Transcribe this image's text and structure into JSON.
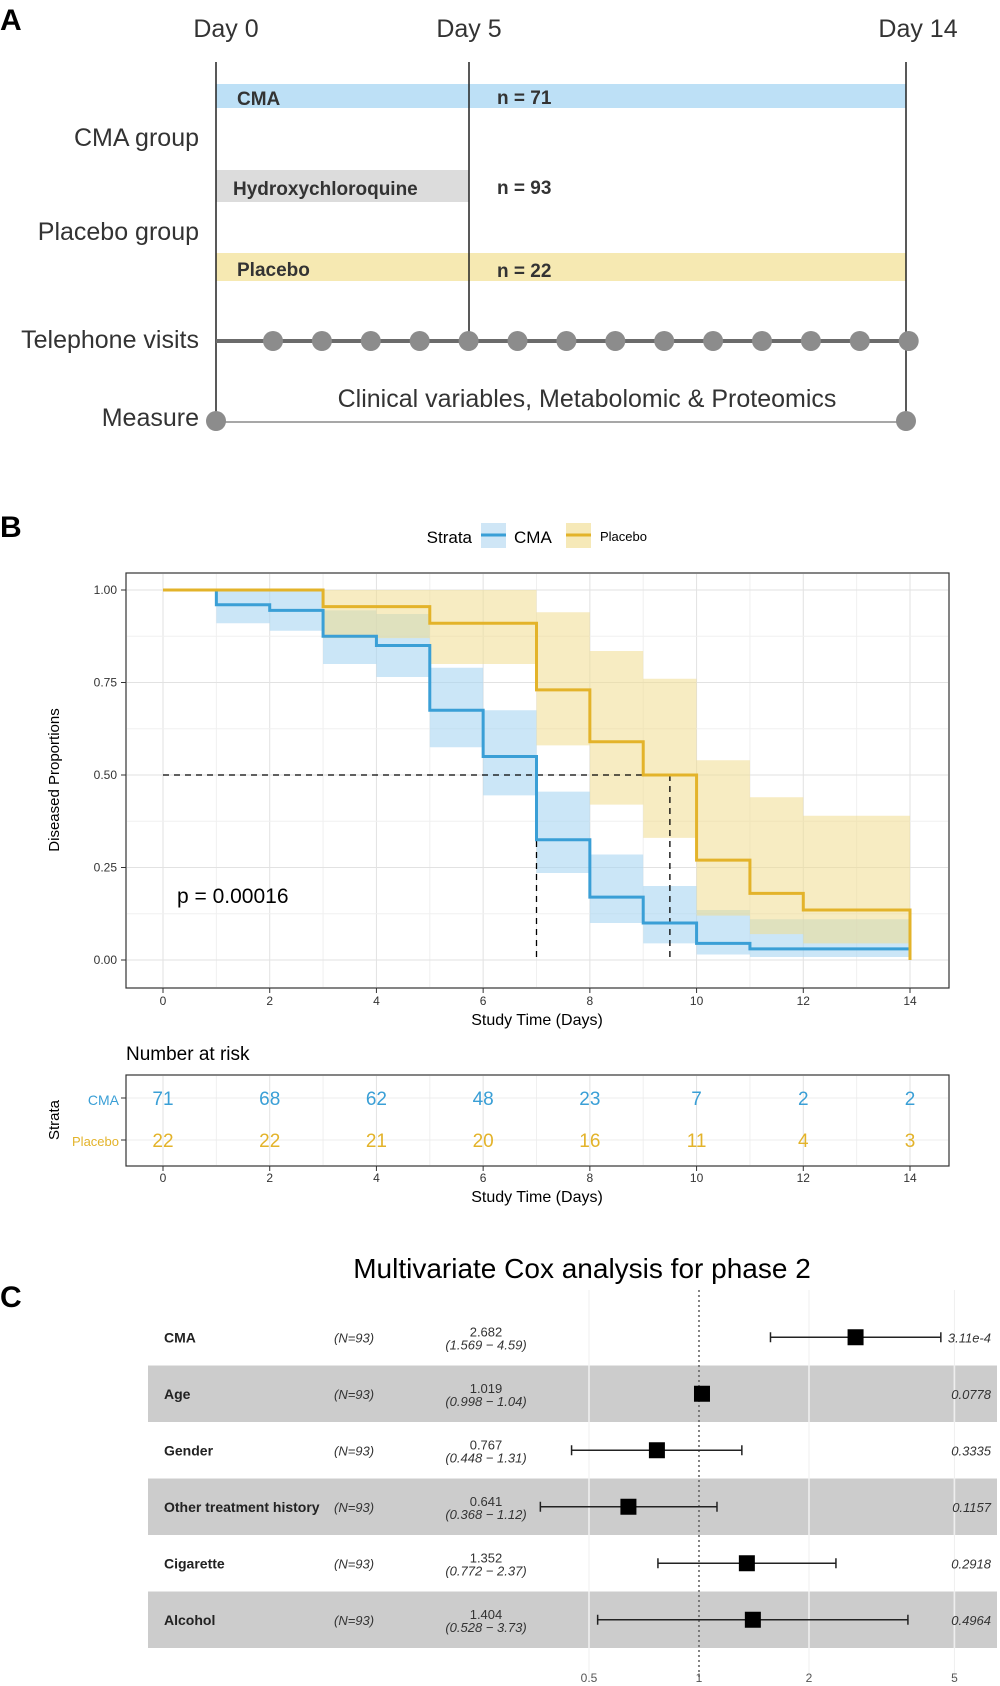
{
  "panels": {
    "a": {
      "letter": "A",
      "day_labels": [
        "Day 0",
        "Day 5",
        "Day 14"
      ],
      "row_labels": [
        "CMA group",
        "Placebo group",
        "Telephone visits",
        "Measure"
      ],
      "bars": [
        {
          "label": "CMA",
          "n_text": "n = 71",
          "color": "#bde0f6"
        },
        {
          "label": "Hydroxychloroquine",
          "n_text": "n = 93",
          "color": "#dcdcdc"
        },
        {
          "label": "Placebo",
          "n_text": "n = 22",
          "color": "#f6e9b2"
        }
      ],
      "measure_text": "Clinical variables, Metabolomic & Proteomics"
    },
    "b": {
      "letter": "B"
    },
    "c": {
      "letter": "C"
    }
  },
  "chart_data": [
    {
      "type": "line",
      "chart": "kaplan-meier",
      "legend": {
        "title": "Strata",
        "placement": "top",
        "entries": [
          "CMA",
          "Placebo"
        ]
      },
      "xlabel": "Study Time (Days)",
      "ylabel": "Diseased Proportions",
      "xlim": [
        0,
        14
      ],
      "ylim": [
        0,
        1
      ],
      "x_ticks": [
        0,
        2,
        4,
        6,
        8,
        10,
        12,
        14
      ],
      "y_ticks": [
        "0.00",
        "0.25",
        "0.50",
        "0.75",
        "1.00"
      ],
      "grid": true,
      "annotation": "p = 0.00016",
      "median_reference": {
        "y": 0.5,
        "x": [
          7,
          9.5
        ]
      },
      "colors": {
        "CMA": "#3a9fd6",
        "Placebo": "#e3b32a",
        "CMA_band": "#a9d5f1",
        "Placebo_band": "#f1dd8f"
      },
      "series": [
        {
          "name": "CMA",
          "steps": [
            [
              0,
              1.0
            ],
            [
              1,
              0.96
            ],
            [
              2,
              0.945
            ],
            [
              3,
              0.875
            ],
            [
              4,
              0.85
            ],
            [
              5,
              0.675
            ],
            [
              6,
              0.55
            ],
            [
              7,
              0.325
            ],
            [
              8,
              0.17
            ],
            [
              9,
              0.1
            ],
            [
              10,
              0.045
            ],
            [
              11,
              0.03
            ],
            [
              14,
              0.03
            ]
          ],
          "lower": [
            [
              0,
              1.0
            ],
            [
              1,
              0.91
            ],
            [
              2,
              0.89
            ],
            [
              3,
              0.8
            ],
            [
              4,
              0.765
            ],
            [
              5,
              0.575
            ],
            [
              6,
              0.445
            ],
            [
              7,
              0.235
            ],
            [
              8,
              0.1
            ],
            [
              9,
              0.045
            ],
            [
              10,
              0.015
            ],
            [
              11,
              0.008
            ],
            [
              14,
              0.008
            ]
          ],
          "upper": [
            [
              0,
              1.0
            ],
            [
              1,
              1.0
            ],
            [
              2,
              1.0
            ],
            [
              3,
              0.945
            ],
            [
              4,
              0.935
            ],
            [
              5,
              0.79
            ],
            [
              6,
              0.675
            ],
            [
              7,
              0.455
            ],
            [
              8,
              0.285
            ],
            [
              9,
              0.2
            ],
            [
              10,
              0.135
            ],
            [
              11,
              0.11
            ],
            [
              14,
              0.11
            ]
          ]
        },
        {
          "name": "Placebo",
          "steps": [
            [
              0,
              1.0
            ],
            [
              3,
              0.955
            ],
            [
              5,
              0.91
            ],
            [
              7,
              0.73
            ],
            [
              8,
              0.59
            ],
            [
              9,
              0.5
            ],
            [
              10,
              0.27
            ],
            [
              11,
              0.18
            ],
            [
              12,
              0.135
            ],
            [
              14,
              0.135
            ],
            [
              14,
              0.0
            ]
          ],
          "lower": [
            [
              0,
              1.0
            ],
            [
              3,
              0.87
            ],
            [
              5,
              0.8
            ],
            [
              7,
              0.58
            ],
            [
              8,
              0.42
            ],
            [
              9,
              0.33
            ],
            [
              10,
              0.12
            ],
            [
              11,
              0.07
            ],
            [
              12,
              0.045
            ],
            [
              14,
              0.045
            ]
          ],
          "upper": [
            [
              0,
              1.0
            ],
            [
              3,
              1.0
            ],
            [
              5,
              1.0
            ],
            [
              7,
              0.94
            ],
            [
              8,
              0.835
            ],
            [
              9,
              0.76
            ],
            [
              10,
              0.54
            ],
            [
              11,
              0.44
            ],
            [
              12,
              0.39
            ],
            [
              14,
              0.39
            ]
          ]
        }
      ]
    },
    {
      "type": "table",
      "chart": "number-at-risk",
      "title": "Number at risk",
      "ylabel": "Strata",
      "xlabel": "Study Time (Days)",
      "x": [
        0,
        2,
        4,
        6,
        8,
        10,
        12,
        14
      ],
      "rows": [
        {
          "name": "CMA",
          "color": "#3a9fd6",
          "values": [
            71,
            68,
            62,
            48,
            23,
            7,
            2,
            2
          ]
        },
        {
          "name": "Placebo",
          "color": "#e3b32a",
          "values": [
            22,
            22,
            21,
            20,
            16,
            11,
            4,
            3
          ]
        }
      ]
    },
    {
      "type": "scatter",
      "chart": "forest-plot",
      "title": "Multivariate Cox analysis for phase 2",
      "x_scale": "log",
      "xlim": [
        0.3,
        6
      ],
      "x_ticks": [
        0.5,
        1,
        2,
        5
      ],
      "reference": 1,
      "rows": [
        {
          "name": "CMA",
          "n": "(N=93)",
          "hr": "2.682",
          "ci": "(1.569 − 4.59)",
          "p": "3.11e-4",
          "est": 2.682,
          "lo": 1.569,
          "hi": 4.59,
          "shaded": false
        },
        {
          "name": "Age",
          "n": "(N=93)",
          "hr": "1.019",
          "ci": "(0.998 − 1.04)",
          "p": "0.0778",
          "est": 1.019,
          "lo": 0.998,
          "hi": 1.04,
          "shaded": true
        },
        {
          "name": "Gender",
          "n": "(N=93)",
          "hr": "0.767",
          "ci": "(0.448 − 1.31)",
          "p": "0.3335",
          "est": 0.767,
          "lo": 0.448,
          "hi": 1.31,
          "shaded": false
        },
        {
          "name": "Other treatment history",
          "n": "(N=93)",
          "hr": "0.641",
          "ci": "(0.368 − 1.12)",
          "p": "0.1157",
          "est": 0.641,
          "lo": 0.368,
          "hi": 1.12,
          "shaded": true
        },
        {
          "name": "Cigarette",
          "n": "(N=93)",
          "hr": "1.352",
          "ci": "(0.772 − 2.37)",
          "p": "0.2918",
          "est": 1.352,
          "lo": 0.772,
          "hi": 2.37,
          "shaded": false
        },
        {
          "name": "Alcohol",
          "n": "(N=93)",
          "hr": "1.404",
          "ci": "(0.528 − 3.73)",
          "p": "0.4964",
          "est": 1.404,
          "lo": 0.528,
          "hi": 3.73,
          "shaded": true
        }
      ]
    }
  ]
}
